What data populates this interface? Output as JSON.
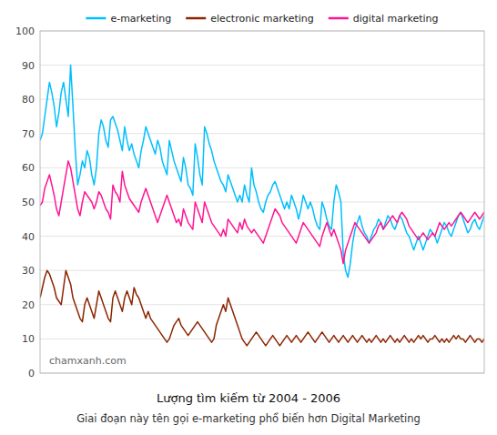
{
  "chart_data": {
    "type": "line",
    "title": "Lượng tìm kiếm từ 2004 - 2006",
    "subtitle": "Giai đoạn này tên gọi e-marketing phổ biến hơn Digital Marketing",
    "annotations": [
      "chamxanh.com"
    ],
    "categories": [
      null,
      null,
      null,
      null,
      null,
      null,
      null,
      null,
      null,
      null,
      null,
      null,
      null,
      null,
      null,
      null,
      null,
      null,
      null,
      null,
      null,
      null,
      null,
      null,
      null,
      null,
      null,
      null,
      null,
      null,
      null,
      null,
      null,
      null,
      null,
      null,
      null,
      null,
      null,
      null,
      null,
      null,
      null,
      null,
      null,
      null,
      null,
      null,
      null,
      null,
      null,
      null,
      null,
      null,
      null,
      null,
      null,
      null,
      null,
      null,
      null,
      null,
      null,
      null,
      null,
      null,
      null,
      null,
      null,
      null,
      null,
      null,
      null,
      null,
      null,
      null,
      null,
      null,
      null,
      null,
      null,
      null,
      null,
      null,
      null,
      null,
      null,
      null,
      null,
      null,
      null,
      null,
      null,
      null,
      null,
      null,
      null,
      null,
      null,
      null,
      null,
      null,
      null,
      null,
      null,
      null,
      null,
      null,
      null,
      null,
      null,
      null,
      null,
      null,
      null,
      null,
      null,
      null,
      null,
      null,
      null,
      null,
      null,
      null,
      null,
      null,
      null,
      null,
      null,
      null,
      null,
      null,
      null,
      null,
      null,
      null,
      null,
      null,
      null,
      null,
      null,
      null,
      null,
      null,
      null,
      null,
      null,
      null,
      null,
      null,
      null,
      null,
      null,
      null,
      null,
      null,
      null,
      null,
      null,
      null,
      null,
      null,
      null,
      null,
      null,
      null,
      null,
      null,
      null,
      null,
      null,
      null,
      null,
      null,
      null,
      null,
      null,
      null,
      null,
      null,
      null,
      null,
      null,
      null,
      null,
      null,
      null,
      null,
      null,
      null
    ],
    "series": [
      {
        "name": "e-marketing",
        "color": "#00BFFF",
        "values": [
          68,
          70,
          75,
          80,
          85,
          82,
          78,
          72,
          76,
          82,
          85,
          80,
          75,
          90,
          78,
          65,
          55,
          58,
          62,
          60,
          65,
          63,
          58,
          55,
          60,
          70,
          74,
          72,
          68,
          66,
          74,
          75,
          73,
          71,
          68,
          65,
          72,
          68,
          65,
          67,
          64,
          62,
          60,
          65,
          68,
          72,
          70,
          68,
          66,
          64,
          68,
          66,
          62,
          60,
          58,
          68,
          65,
          62,
          60,
          58,
          56,
          63,
          60,
          55,
          54,
          52,
          67,
          63,
          58,
          55,
          72,
          70,
          67,
          65,
          62,
          60,
          58,
          56,
          55,
          53,
          58,
          56,
          54,
          52,
          50,
          52,
          50,
          55,
          52,
          50,
          60,
          55,
          53,
          50,
          48,
          47,
          50,
          52,
          53,
          55,
          56,
          54,
          52,
          50,
          48,
          50,
          48,
          52,
          50,
          48,
          45,
          48,
          52,
          50,
          48,
          50,
          48,
          45,
          43,
          42,
          50,
          48,
          45,
          43,
          42,
          50,
          55,
          53,
          50,
          35,
          30,
          28,
          32,
          38,
          42,
          44,
          46,
          43,
          41,
          40,
          38,
          40,
          42,
          43,
          45,
          44,
          42,
          44,
          46,
          45,
          43,
          42,
          44,
          46,
          45,
          43,
          41,
          40,
          38,
          36,
          38,
          40,
          38,
          36,
          38,
          40,
          42,
          41,
          40,
          38,
          40,
          42,
          44,
          43,
          41,
          40,
          42,
          44,
          46,
          47,
          45,
          43,
          41,
          42,
          44,
          45,
          43,
          42,
          44,
          46
        ]
      },
      {
        "name": "electronic marketing",
        "color": "#8B2500",
        "values": [
          22,
          25,
          28,
          30,
          29,
          27,
          25,
          22,
          21,
          20,
          25,
          30,
          28,
          26,
          22,
          20,
          18,
          16,
          15,
          20,
          22,
          20,
          18,
          16,
          20,
          24,
          22,
          20,
          18,
          16,
          15,
          22,
          24,
          22,
          20,
          18,
          22,
          24,
          22,
          20,
          25,
          23,
          22,
          20,
          18,
          16,
          18,
          16,
          15,
          14,
          13,
          12,
          11,
          10,
          9,
          10,
          12,
          14,
          15,
          16,
          14,
          13,
          12,
          11,
          12,
          13,
          14,
          15,
          14,
          13,
          12,
          11,
          10,
          9,
          10,
          14,
          16,
          18,
          20,
          18,
          22,
          20,
          18,
          16,
          14,
          12,
          10,
          9,
          8,
          9,
          10,
          11,
          12,
          11,
          10,
          9,
          8,
          9,
          10,
          11,
          10,
          9,
          8,
          9,
          10,
          11,
          10,
          9,
          10,
          11,
          10,
          9,
          10,
          11,
          12,
          11,
          10,
          9,
          10,
          11,
          12,
          11,
          10,
          9,
          10,
          11,
          10,
          9,
          10,
          11,
          10,
          9,
          10,
          11,
          10,
          9,
          10,
          11,
          10,
          9,
          10,
          9,
          10,
          11,
          10,
          9,
          10,
          9,
          10,
          11,
          10,
          9,
          10,
          9,
          10,
          11,
          10,
          9,
          10,
          9,
          10,
          11,
          10,
          11,
          10,
          9,
          10,
          10,
          11,
          10,
          9,
          10,
          9,
          10,
          9,
          10,
          11,
          10,
          11,
          10,
          10,
          9,
          10,
          11,
          10,
          9,
          10,
          10,
          9,
          10
        ]
      },
      {
        "name": "digital marketing",
        "color": "#FF1493",
        "values": [
          49,
          50,
          54,
          56,
          58,
          55,
          52,
          48,
          46,
          50,
          54,
          58,
          62,
          60,
          56,
          52,
          48,
          46,
          50,
          53,
          52,
          51,
          50,
          48,
          50,
          53,
          52,
          50,
          48,
          47,
          45,
          55,
          53,
          52,
          50,
          59,
          55,
          53,
          51,
          50,
          49,
          48,
          47,
          50,
          52,
          54,
          52,
          50,
          48,
          46,
          44,
          46,
          48,
          50,
          52,
          50,
          48,
          46,
          44,
          45,
          43,
          48,
          46,
          44,
          43,
          42,
          50,
          48,
          46,
          44,
          50,
          48,
          46,
          44,
          43,
          42,
          41,
          40,
          42,
          40,
          45,
          44,
          43,
          42,
          41,
          44,
          42,
          45,
          43,
          42,
          41,
          42,
          41,
          40,
          39,
          38,
          40,
          42,
          44,
          46,
          48,
          47,
          46,
          44,
          43,
          42,
          41,
          40,
          39,
          38,
          40,
          42,
          44,
          43,
          42,
          41,
          40,
          39,
          38,
          37,
          40,
          42,
          44,
          42,
          40,
          42,
          40,
          38,
          36,
          32,
          36,
          38,
          40,
          42,
          44,
          43,
          42,
          41,
          40,
          39,
          38,
          39,
          40,
          41,
          43,
          44,
          42,
          43,
          44,
          45,
          46,
          45,
          44,
          46,
          47,
          46,
          45,
          43,
          42,
          41,
          40,
          39,
          40,
          41,
          40,
          39,
          40,
          41,
          40,
          42,
          44,
          43,
          42,
          43,
          44,
          43,
          44,
          45,
          46,
          47,
          46,
          45,
          44,
          45,
          46,
          47,
          46,
          45,
          46,
          47
        ]
      }
    ],
    "ylim": [
      0,
      100
    ],
    "yticks": [
      0,
      10,
      20,
      30,
      40,
      50,
      60,
      70,
      80,
      90,
      100
    ],
    "grid": true,
    "legend": "top",
    "tick_labels": "y"
  }
}
